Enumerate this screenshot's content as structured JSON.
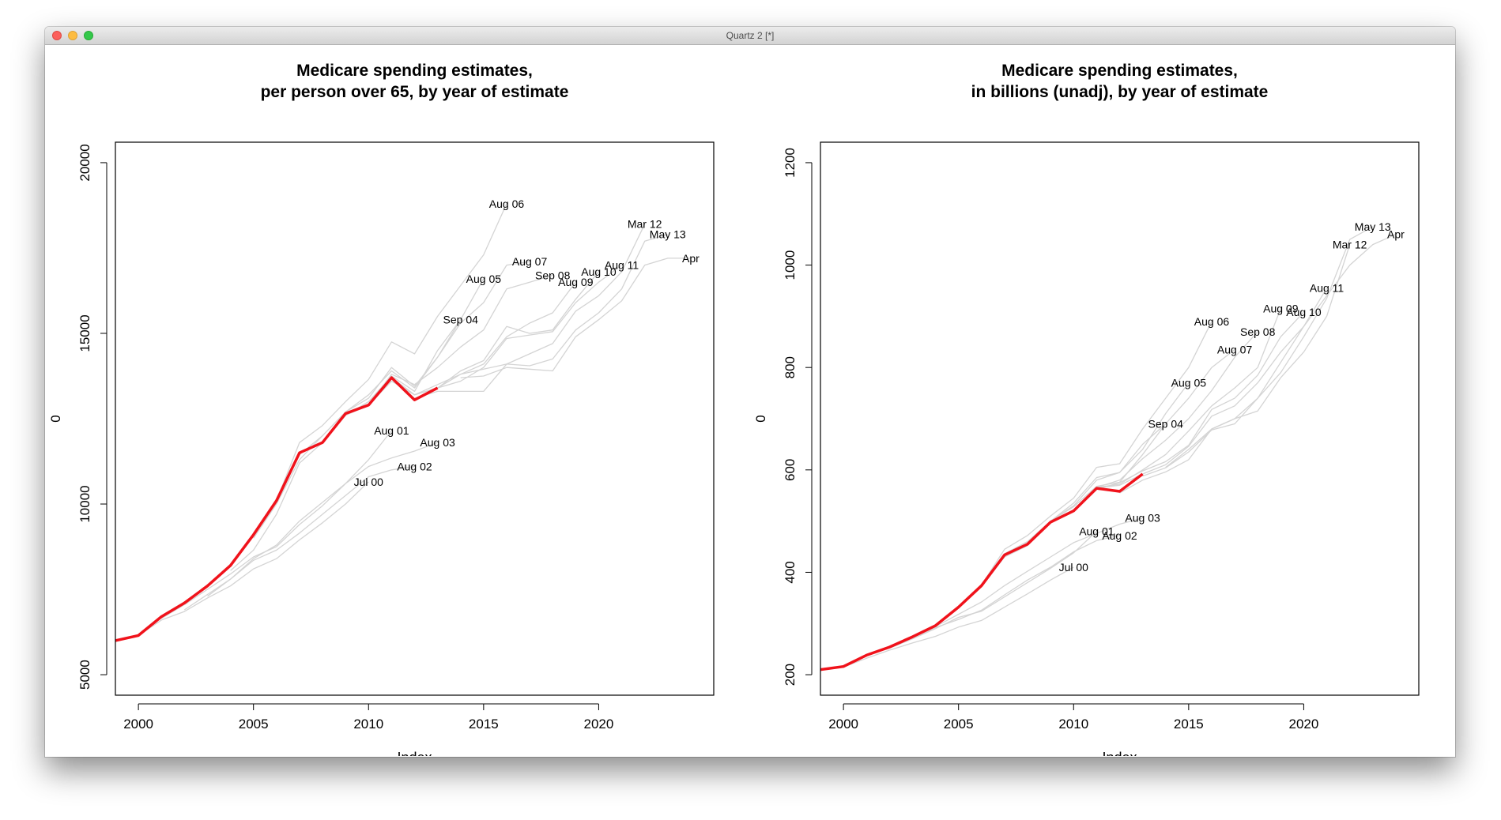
{
  "window": {
    "title": "Quartz 2 [*]"
  },
  "chart_data": [
    {
      "type": "line",
      "title": "Medicare spending estimates,\nper person over 65, by year of estimate",
      "xlabel": "Index",
      "ylabel": "0",
      "xlim": [
        1999,
        2025
      ],
      "ylim": [
        4400,
        20600
      ],
      "x_ticks": [
        2000,
        2005,
        2010,
        2015,
        2020
      ],
      "y_ticks": [
        5000,
        10000,
        15000,
        20000
      ],
      "colors": {
        "current": "#f0121b",
        "past": "#d4d4d4"
      },
      "series": [
        {
          "name": "Jul 00",
          "x": [
            2000,
            2001,
            2002,
            2003,
            2004,
            2005,
            2006,
            2007,
            2008,
            2009,
            2010
          ],
          "y": [
            6150,
            6600,
            6850,
            7250,
            7600,
            8100,
            8400,
            8950,
            9450,
            10000,
            10650
          ]
        },
        {
          "name": "Aug 01",
          "x": [
            2001,
            2002,
            2003,
            2004,
            2005,
            2006,
            2007,
            2008,
            2009,
            2010,
            2011
          ],
          "y": [
            6650,
            7050,
            7500,
            7950,
            8450,
            8750,
            9400,
            9950,
            10600,
            11300,
            12150
          ]
        },
        {
          "name": "Aug 02",
          "x": [
            2002,
            2003,
            2004,
            2005,
            2006,
            2007,
            2008,
            2009,
            2010,
            2011,
            2012
          ],
          "y": [
            6900,
            7350,
            7800,
            8350,
            8650,
            9150,
            9700,
            10250,
            10800,
            11000,
            11100
          ]
        },
        {
          "name": "Aug 03",
          "x": [
            2003,
            2004,
            2005,
            2006,
            2007,
            2008,
            2009,
            2010,
            2011,
            2012,
            2013
          ],
          "y": [
            7300,
            7800,
            8400,
            8800,
            9500,
            10050,
            10600,
            11100,
            11350,
            11550,
            11800
          ]
        },
        {
          "name": "Sep 04",
          "x": [
            2004,
            2005,
            2006,
            2007,
            2008,
            2009,
            2010,
            2011,
            2012,
            2013,
            2014
          ],
          "y": [
            8050,
            8650,
            9700,
            11200,
            11800,
            12600,
            13000,
            13750,
            13300,
            14500,
            15400
          ]
        },
        {
          "name": "Aug 05",
          "x": [
            2005,
            2006,
            2007,
            2008,
            2009,
            2010,
            2011,
            2012,
            2013,
            2014,
            2015
          ],
          "y": [
            9000,
            10000,
            11300,
            12000,
            12700,
            13100,
            14000,
            13450,
            14300,
            15400,
            16600
          ]
        },
        {
          "name": "Aug 06",
          "x": [
            2006,
            2007,
            2008,
            2009,
            2010,
            2011,
            2012,
            2013,
            2014,
            2015,
            2016
          ],
          "y": [
            10100,
            11800,
            12300,
            13000,
            13650,
            14750,
            14400,
            15500,
            16400,
            17300,
            18800
          ]
        },
        {
          "name": "Aug 07",
          "x": [
            2007,
            2008,
            2009,
            2010,
            2011,
            2012,
            2013,
            2014,
            2015,
            2016,
            2017
          ],
          "y": [
            11450,
            12000,
            12700,
            13200,
            13900,
            13400,
            14300,
            15300,
            15900,
            17000,
            17100
          ]
        },
        {
          "name": "Sep 08",
          "x": [
            2008,
            2009,
            2010,
            2011,
            2012,
            2013,
            2014,
            2015,
            2016,
            2017,
            2018
          ],
          "y": [
            11800,
            12600,
            12900,
            13800,
            13500,
            14000,
            14600,
            15100,
            16300,
            16500,
            16700
          ]
        },
        {
          "name": "Aug 09",
          "x": [
            2009,
            2010,
            2011,
            2012,
            2013,
            2014,
            2015,
            2016,
            2017,
            2018,
            2019
          ],
          "y": [
            12600,
            12900,
            13700,
            13200,
            13500,
            13800,
            14100,
            14900,
            15300,
            15600,
            16500
          ]
        },
        {
          "name": "Aug 10",
          "x": [
            2010,
            2011,
            2012,
            2013,
            2014,
            2015,
            2016,
            2017,
            2018,
            2019,
            2020
          ],
          "y": [
            12900,
            13600,
            13200,
            13400,
            13900,
            14200,
            15200,
            15000,
            15100,
            16000,
            16800
          ]
        },
        {
          "name": "Aug 11",
          "x": [
            2011,
            2012,
            2013,
            2014,
            2015,
            2016,
            2017,
            2018,
            2019,
            2020,
            2021
          ],
          "y": [
            13700,
            13200,
            13400,
            13600,
            14000,
            14850,
            14950,
            15050,
            15900,
            16500,
            17000
          ]
        },
        {
          "name": "Mar 12",
          "x": [
            2012,
            2013,
            2014,
            2015,
            2016,
            2017,
            2018,
            2019,
            2020,
            2021,
            2022
          ],
          "y": [
            13100,
            13300,
            13300,
            13300,
            14100,
            14400,
            14700,
            15650,
            16100,
            16800,
            18200
          ]
        },
        {
          "name": "May 13",
          "x": [
            2013,
            2014,
            2015,
            2016,
            2017,
            2018,
            2019,
            2020,
            2021,
            2022,
            2023
          ],
          "y": [
            13400,
            13800,
            13950,
            14100,
            14050,
            14250,
            15100,
            15600,
            16300,
            17700,
            17900
          ]
        },
        {
          "name": "Apr",
          "x": [
            2014,
            2015,
            2016,
            2017,
            2018,
            2019,
            2020,
            2021,
            2022,
            2023,
            2024
          ],
          "y": [
            13700,
            13750,
            14000,
            13950,
            13900,
            14900,
            15400,
            15950,
            17000,
            17200,
            17200
          ]
        },
        {
          "name": "",
          "current": true,
          "x": [
            1999,
            2000,
            2001,
            2002,
            2003,
            2004,
            2005,
            2006,
            2007,
            2008,
            2009,
            2010,
            2011,
            2012,
            2013
          ],
          "y": [
            6000,
            6150,
            6700,
            7100,
            7600,
            8200,
            9100,
            10100,
            11500,
            11800,
            12650,
            12900,
            13700,
            13050,
            13400
          ]
        }
      ]
    },
    {
      "type": "line",
      "title": "Medicare spending estimates,\nin billions (unadj), by year of estimate",
      "xlabel": "Index",
      "ylabel": "0",
      "xlim": [
        1999,
        2025
      ],
      "ylim": [
        160,
        1240
      ],
      "x_ticks": [
        2000,
        2005,
        2010,
        2015,
        2020
      ],
      "y_ticks": [
        200,
        400,
        600,
        800,
        1000,
        1200
      ],
      "colors": {
        "current": "#f0121b",
        "past": "#d4d4d4"
      },
      "series": [
        {
          "name": "Jul 00",
          "x": [
            2000,
            2001,
            2002,
            2003,
            2004,
            2005,
            2006,
            2007,
            2008,
            2009,
            2010
          ],
          "y": [
            215,
            232,
            248,
            262,
            275,
            293,
            306,
            332,
            358,
            385,
            410
          ]
        },
        {
          "name": "Aug 01",
          "x": [
            2001,
            2002,
            2003,
            2004,
            2005,
            2006,
            2007,
            2008,
            2009,
            2010,
            2011
          ],
          "y": [
            238,
            252,
            270,
            290,
            312,
            324,
            352,
            380,
            408,
            438,
            480
          ]
        },
        {
          "name": "Aug 02",
          "x": [
            2002,
            2003,
            2004,
            2005,
            2006,
            2007,
            2008,
            2009,
            2010,
            2011,
            2012
          ],
          "y": [
            255,
            272,
            292,
            308,
            326,
            356,
            385,
            410,
            440,
            462,
            472
          ]
        },
        {
          "name": "Aug 03",
          "x": [
            2003,
            2004,
            2005,
            2006,
            2007,
            2008,
            2009,
            2010,
            2011,
            2012,
            2013
          ],
          "y": [
            272,
            294,
            318,
            342,
            374,
            402,
            430,
            458,
            476,
            494,
            506
          ]
        },
        {
          "name": "Sep 04",
          "x": [
            2004,
            2005,
            2006,
            2007,
            2008,
            2009,
            2010,
            2011,
            2012,
            2013,
            2014
          ],
          "y": [
            296,
            330,
            372,
            430,
            452,
            500,
            535,
            585,
            595,
            650,
            690
          ]
        },
        {
          "name": "Aug 05",
          "x": [
            2005,
            2006,
            2007,
            2008,
            2009,
            2010,
            2011,
            2012,
            2013,
            2014,
            2015
          ],
          "y": [
            330,
            372,
            436,
            460,
            500,
            530,
            580,
            595,
            640,
            710,
            770
          ]
        },
        {
          "name": "Aug 06",
          "x": [
            2006,
            2007,
            2008,
            2009,
            2010,
            2011,
            2012,
            2013,
            2014,
            2015,
            2016
          ],
          "y": [
            375,
            445,
            472,
            510,
            545,
            605,
            612,
            680,
            740,
            800,
            890
          ]
        },
        {
          "name": "Aug 07",
          "x": [
            2007,
            2008,
            2009,
            2010,
            2011,
            2012,
            2013,
            2014,
            2015,
            2016,
            2017
          ],
          "y": [
            436,
            460,
            500,
            528,
            568,
            576,
            630,
            690,
            740,
            800,
            835
          ]
        },
        {
          "name": "Sep 08",
          "x": [
            2008,
            2009,
            2010,
            2011,
            2012,
            2013,
            2014,
            2015,
            2016,
            2017,
            2018
          ],
          "y": [
            458,
            500,
            522,
            566,
            580,
            622,
            658,
            700,
            755,
            820,
            870
          ]
        },
        {
          "name": "Aug 09",
          "x": [
            2009,
            2010,
            2011,
            2012,
            2013,
            2014,
            2015,
            2016,
            2017,
            2018,
            2019
          ],
          "y": [
            498,
            522,
            566,
            572,
            600,
            630,
            676,
            725,
            760,
            800,
            915
          ]
        },
        {
          "name": "Aug 10",
          "x": [
            2010,
            2011,
            2012,
            2013,
            2014,
            2015,
            2016,
            2017,
            2018,
            2019,
            2020
          ],
          "y": [
            520,
            562,
            575,
            598,
            616,
            648,
            718,
            740,
            785,
            860,
            908
          ]
        },
        {
          "name": "Aug 11",
          "x": [
            2011,
            2012,
            2013,
            2014,
            2015,
            2016,
            2017,
            2018,
            2019,
            2020,
            2021
          ],
          "y": [
            565,
            570,
            592,
            610,
            646,
            705,
            725,
            770,
            830,
            880,
            955
          ]
        },
        {
          "name": "Mar 12",
          "x": [
            2012,
            2013,
            2014,
            2015,
            2016,
            2017,
            2018,
            2019,
            2020,
            2021,
            2022
          ],
          "y": [
            555,
            580,
            596,
            620,
            680,
            700,
            715,
            780,
            830,
            900,
            1040
          ]
        },
        {
          "name": "May 13",
          "x": [
            2013,
            2014,
            2015,
            2016,
            2017,
            2018,
            2019,
            2020,
            2021,
            2022,
            2023
          ],
          "y": [
            588,
            604,
            635,
            678,
            690,
            740,
            790,
            860,
            935,
            1050,
            1075
          ]
        },
        {
          "name": "Apr",
          "x": [
            2014,
            2015,
            2016,
            2017,
            2018,
            2019,
            2020,
            2021,
            2022,
            2023,
            2024
          ],
          "y": [
            605,
            640,
            680,
            700,
            740,
            810,
            880,
            940,
            1000,
            1040,
            1060
          ]
        },
        {
          "name": "",
          "current": true,
          "x": [
            1999,
            2000,
            2001,
            2002,
            2003,
            2004,
            2005,
            2006,
            2007,
            2008,
            2009,
            2010,
            2011,
            2012,
            2013
          ],
          "y": [
            210,
            216,
            238,
            254,
            274,
            296,
            332,
            374,
            434,
            455,
            498,
            520,
            564,
            558,
            592
          ]
        }
      ]
    }
  ]
}
